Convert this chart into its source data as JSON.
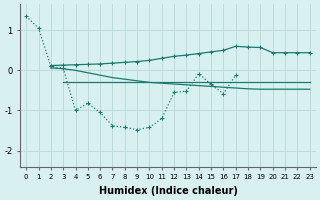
{
  "bg_color": "#d8f0f0",
  "line_color": "#1a7a6e",
  "grid_color": "#b8d8d8",
  "xlabel": "Humidex (Indice chaleur)",
  "xlim": [
    -0.5,
    23.5
  ],
  "ylim": [
    -2.4,
    1.65
  ],
  "yticks": [
    -2,
    -1,
    0,
    1
  ],
  "xticks": [
    0,
    1,
    2,
    3,
    4,
    5,
    6,
    7,
    8,
    9,
    10,
    11,
    12,
    13,
    14,
    15,
    16,
    17,
    18,
    19,
    20,
    21,
    22,
    23
  ],
  "line_dotted_x": [
    0,
    1,
    2,
    3,
    4,
    5,
    6,
    7,
    8,
    9,
    10,
    11,
    12,
    13,
    14,
    15,
    16,
    17
  ],
  "line_dotted_y": [
    1.35,
    1.05,
    0.1,
    0.05,
    -1.0,
    -0.82,
    -1.05,
    -1.38,
    -1.42,
    -1.48,
    -1.42,
    -1.2,
    -0.55,
    -0.52,
    -0.08,
    -0.35,
    -0.58,
    -0.12
  ],
  "line_upper_x": [
    2,
    3,
    4,
    5,
    6,
    7,
    8,
    9,
    10,
    11,
    12,
    13,
    14,
    15,
    16,
    17,
    18,
    19,
    20,
    21,
    22,
    23
  ],
  "line_upper_y": [
    0.12,
    0.13,
    0.14,
    0.15,
    0.16,
    0.18,
    0.2,
    0.22,
    0.25,
    0.3,
    0.35,
    0.38,
    0.42,
    0.46,
    0.5,
    0.6,
    0.58,
    0.57,
    0.44,
    0.44,
    0.44,
    0.44
  ],
  "line_lower_x": [
    2,
    3,
    4,
    5,
    6,
    7,
    8,
    9,
    10,
    11,
    12,
    13,
    14,
    15,
    16,
    17,
    18,
    19,
    20,
    21,
    22,
    23
  ],
  "line_lower_y": [
    0.06,
    0.04,
    0.0,
    -0.06,
    -0.12,
    -0.18,
    -0.22,
    -0.26,
    -0.3,
    -0.32,
    -0.34,
    -0.36,
    -0.38,
    -0.4,
    -0.42,
    -0.44,
    -0.46,
    -0.47,
    -0.47,
    -0.47,
    -0.47,
    -0.47
  ],
  "line_flat_x": [
    3,
    4,
    5,
    6,
    7,
    8,
    9,
    10,
    11,
    12,
    13,
    14,
    15,
    16,
    17,
    18,
    19,
    20,
    21,
    22,
    23
  ],
  "line_flat_y": [
    -0.3,
    -0.3,
    -0.3,
    -0.3,
    -0.3,
    -0.3,
    -0.3,
    -0.3,
    -0.3,
    -0.3,
    -0.3,
    -0.3,
    -0.3,
    -0.3,
    -0.3,
    -0.3,
    -0.3,
    -0.3,
    -0.3,
    -0.3,
    -0.3
  ]
}
